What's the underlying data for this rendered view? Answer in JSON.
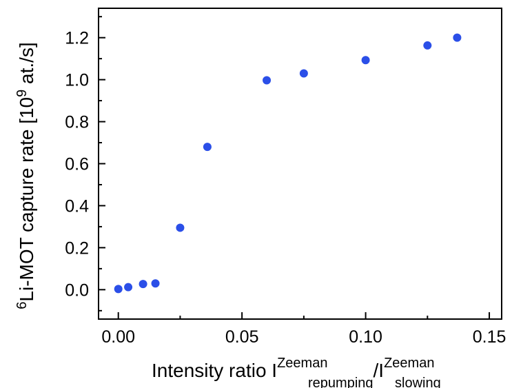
{
  "chart_data": {
    "type": "scatter",
    "xlabel": {
      "main": "Intensity ratio I",
      "sup1": "Zeeman",
      "sub1": "repumping",
      "mid": "/I",
      "sup2": "Zeeman",
      "sub2": "slowing"
    },
    "ylabel": {
      "sup": "6",
      "main": "Li-MOT capture rate [10",
      "sup2": "9",
      "tail": " at./s]"
    },
    "xlim": [
      -0.008,
      0.155
    ],
    "ylim": [
      -0.14,
      1.34
    ],
    "xticks": [
      0.0,
      0.05,
      0.1,
      0.15
    ],
    "xtick_labels": [
      "0.00",
      "0.05",
      "0.10",
      "0.15"
    ],
    "yticks": [
      0.0,
      0.2,
      0.4,
      0.6,
      0.8,
      1.0,
      1.2
    ],
    "ytick_labels": [
      "0.0",
      "0.2",
      "0.4",
      "0.6",
      "0.8",
      "1.0",
      "1.2"
    ],
    "grid": false,
    "marker_color": "#2b4fe8",
    "series": [
      {
        "x": [
          0.0,
          0.004,
          0.01,
          0.015,
          0.025,
          0.036,
          0.06,
          0.075,
          0.1,
          0.125,
          0.137
        ],
        "y": [
          0.003,
          0.012,
          0.027,
          0.03,
          0.295,
          0.68,
          0.997,
          1.03,
          1.093,
          1.163,
          1.2
        ]
      }
    ]
  }
}
